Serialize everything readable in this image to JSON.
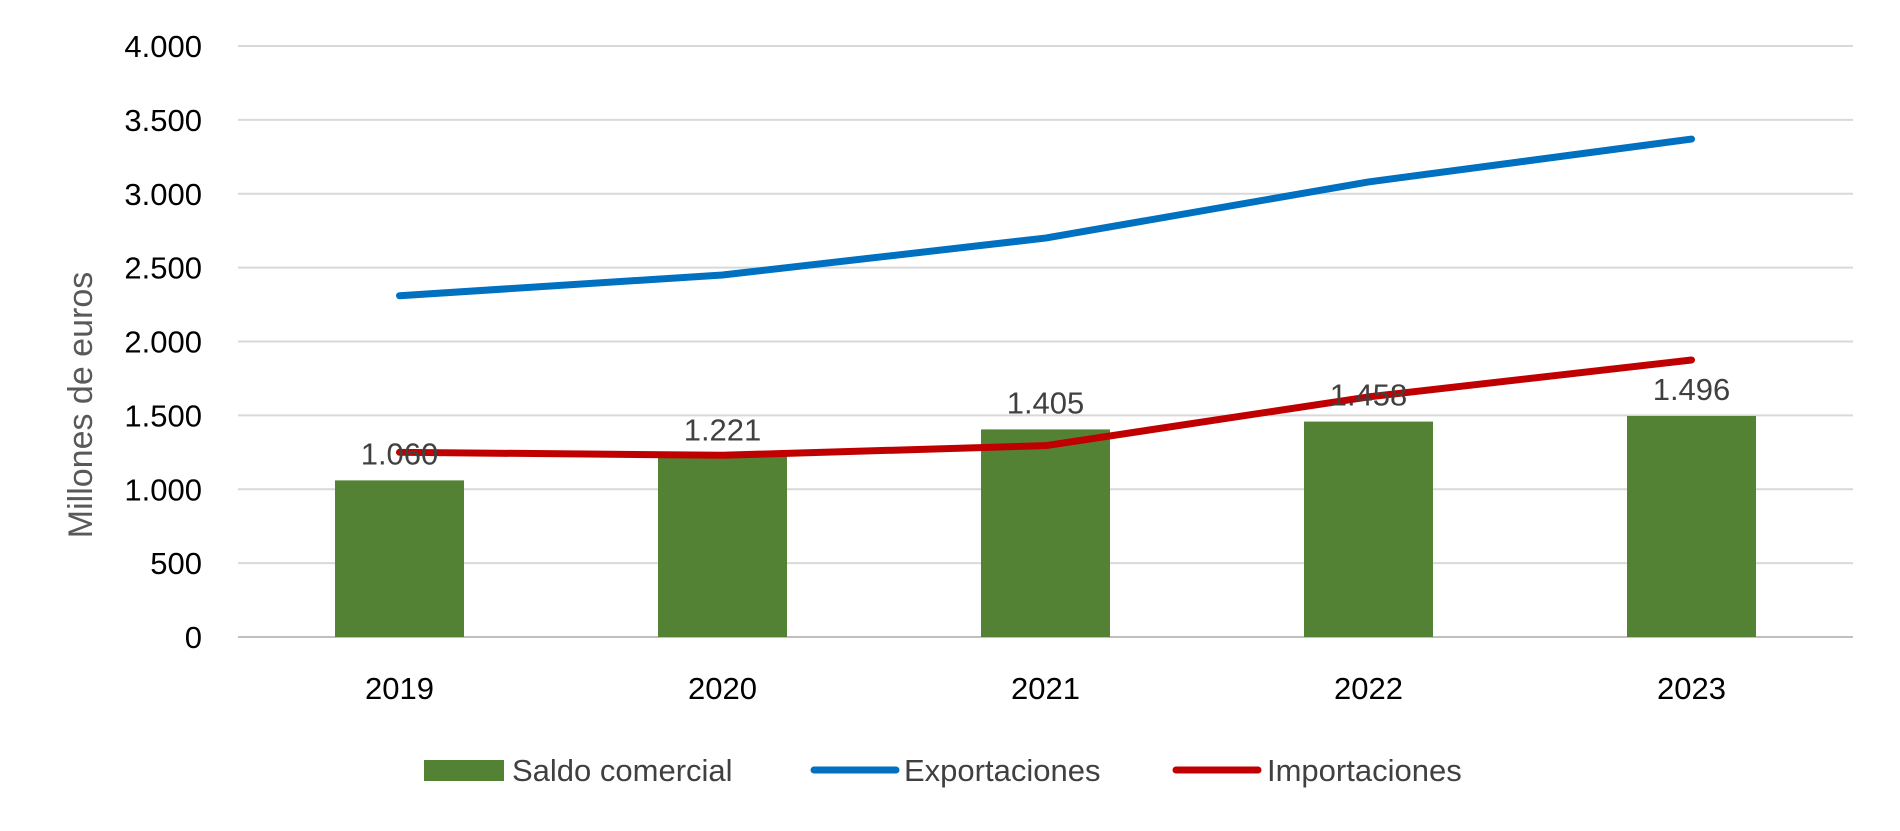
{
  "chart_data": {
    "type": "bar",
    "categories": [
      "2019",
      "2020",
      "2021",
      "2022",
      "2023"
    ],
    "ylabel": "Millones  de euros",
    "xlabel": "",
    "ylim": [
      0,
      4000
    ],
    "yticks": [
      0,
      500,
      1000,
      1500,
      2000,
      2500,
      3000,
      3500,
      4000
    ],
    "ytick_labels": [
      "0",
      "500",
      "1.000",
      "1.500",
      "2.000",
      "2.500",
      "3.000",
      "3.500",
      "4.000"
    ],
    "grid": true,
    "legend_position": "bottom",
    "series": [
      {
        "name": "Saldo comercial",
        "kind": "bar",
        "color": "#548235",
        "values": [
          1060,
          1221,
          1405,
          1458,
          1496
        ],
        "data_labels": [
          "1.060",
          "1.221",
          "1.405",
          "1.458",
          "1.496"
        ]
      },
      {
        "name": "Exportaciones",
        "kind": "line",
        "color": "#0070C0",
        "values": [
          2310,
          2450,
          2700,
          3080,
          3370
        ]
      },
      {
        "name": "Importaciones",
        "kind": "line",
        "color": "#C00000",
        "values": [
          1250,
          1230,
          1295,
          1625,
          1875
        ]
      }
    ]
  }
}
